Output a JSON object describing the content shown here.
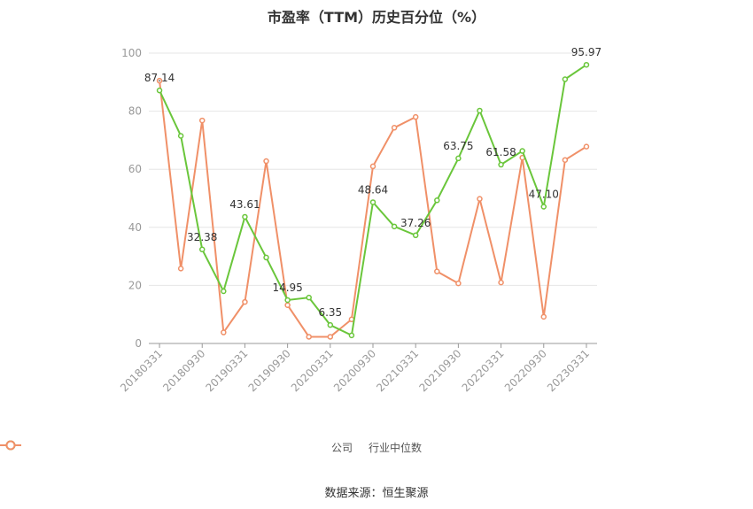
{
  "chart_data": {
    "type": "line",
    "title": "市盈率（TTM）历史百分位（%）",
    "x": [
      "20180331",
      "20180630",
      "20180930",
      "20181231",
      "20190331",
      "20190630",
      "20190930",
      "20191231",
      "20200331",
      "20200630",
      "20200930",
      "20201231",
      "20210331",
      "20210630",
      "20210930",
      "20211231",
      "20220331",
      "20220630",
      "20220930",
      "20221231",
      "20230331"
    ],
    "x_tick_labels": [
      "20180331",
      "20180930",
      "20190331",
      "20190930",
      "20200331",
      "20200930",
      "20210331",
      "20210930",
      "20220331",
      "20220930",
      "20230331"
    ],
    "ylim": [
      0,
      100
    ],
    "y_ticks": [
      0,
      20,
      40,
      60,
      80,
      100
    ],
    "grid": true,
    "legend_position": "bottom",
    "series": [
      {
        "name": "公司",
        "color": "#6ac63b",
        "values": [
          87.14,
          71.5,
          32.38,
          18.0,
          43.61,
          29.6,
          14.95,
          15.8,
          6.35,
          2.8,
          48.64,
          40.3,
          37.26,
          49.3,
          63.75,
          80.2,
          61.58,
          66.3,
          47.1,
          91.0,
          95.97
        ],
        "labels": {
          "0": "87.14",
          "2": "32.38",
          "4": "43.61",
          "6": "14.95",
          "8": "6.35",
          "10": "48.64",
          "12": "37.26",
          "14": "63.75",
          "16": "61.58",
          "18": "47.10",
          "20": "95.97"
        }
      },
      {
        "name": "行业中位数",
        "color": "#f09068",
        "values": [
          90.5,
          25.8,
          76.8,
          3.8,
          14.3,
          62.8,
          13.2,
          2.3,
          2.3,
          8.3,
          61.0,
          74.3,
          78.0,
          24.8,
          20.7,
          49.8,
          21.0,
          64.0,
          9.2,
          63.2,
          67.8
        ]
      }
    ]
  },
  "source": "数据来源：恒生聚源"
}
